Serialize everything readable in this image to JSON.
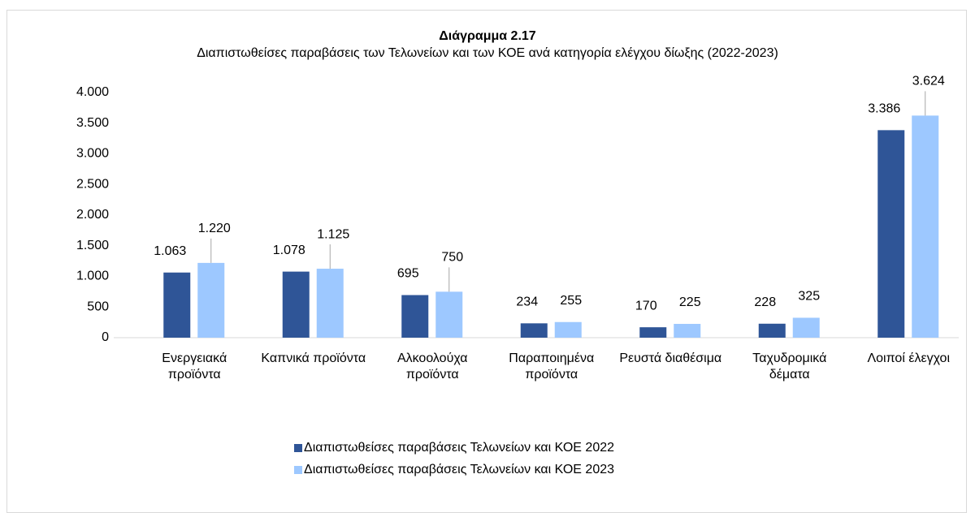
{
  "chart_data": {
    "type": "bar",
    "title": "Διάγραμμα 2.17",
    "subtitle": "Διαπιστωθείσες παραβάσεις των Τελωνείων και των ΚΟΕ ανά κατηγορία ελέγχου δίωξης (2022-2023)",
    "categories": [
      "Ενεργειακά προϊόντα",
      "Καπνικά προϊόντα",
      "Αλκοολούχα προϊόντα",
      "Παραποιημένα προϊόντα",
      "Ρευστά διαθέσιμα",
      "Ταχυδρομικά δέματα",
      "Λοιποί έλεγχοι"
    ],
    "series": [
      {
        "name": "Διαπιστωθείσες παραβάσεις Τελωνείων και ΚΟΕ 2022",
        "color": "#2f5597",
        "values": [
          1063,
          1078,
          695,
          234,
          170,
          228,
          3386
        ],
        "value_labels": [
          "1.063",
          "1.078",
          "695",
          "234",
          "170",
          "228",
          "3.386"
        ]
      },
      {
        "name": "Διαπιστωθείσες παραβάσεις Τελωνείων και ΚΟΕ 2023",
        "color": "#9dc8ff",
        "values": [
          1220,
          1125,
          750,
          255,
          225,
          325,
          3624
        ],
        "value_labels": [
          "1.220",
          "1.125",
          "750",
          "255",
          "225",
          "325",
          "3.624"
        ]
      }
    ],
    "ylim": [
      0,
      4000
    ],
    "yticks": [
      0,
      500,
      {
        "value": 1000,
        "label": "1.000"
      },
      {
        "value": 1500,
        "label": "1.500"
      },
      {
        "value": 2000,
        "label": "2.000"
      },
      {
        "value": 2500,
        "label": "2.500"
      },
      {
        "value": 3000,
        "label": "3.000"
      },
      {
        "value": 3500,
        "label": "3.500"
      },
      {
        "value": 4000,
        "label": "4.000"
      }
    ],
    "grid": false,
    "legend": "bottom"
  }
}
